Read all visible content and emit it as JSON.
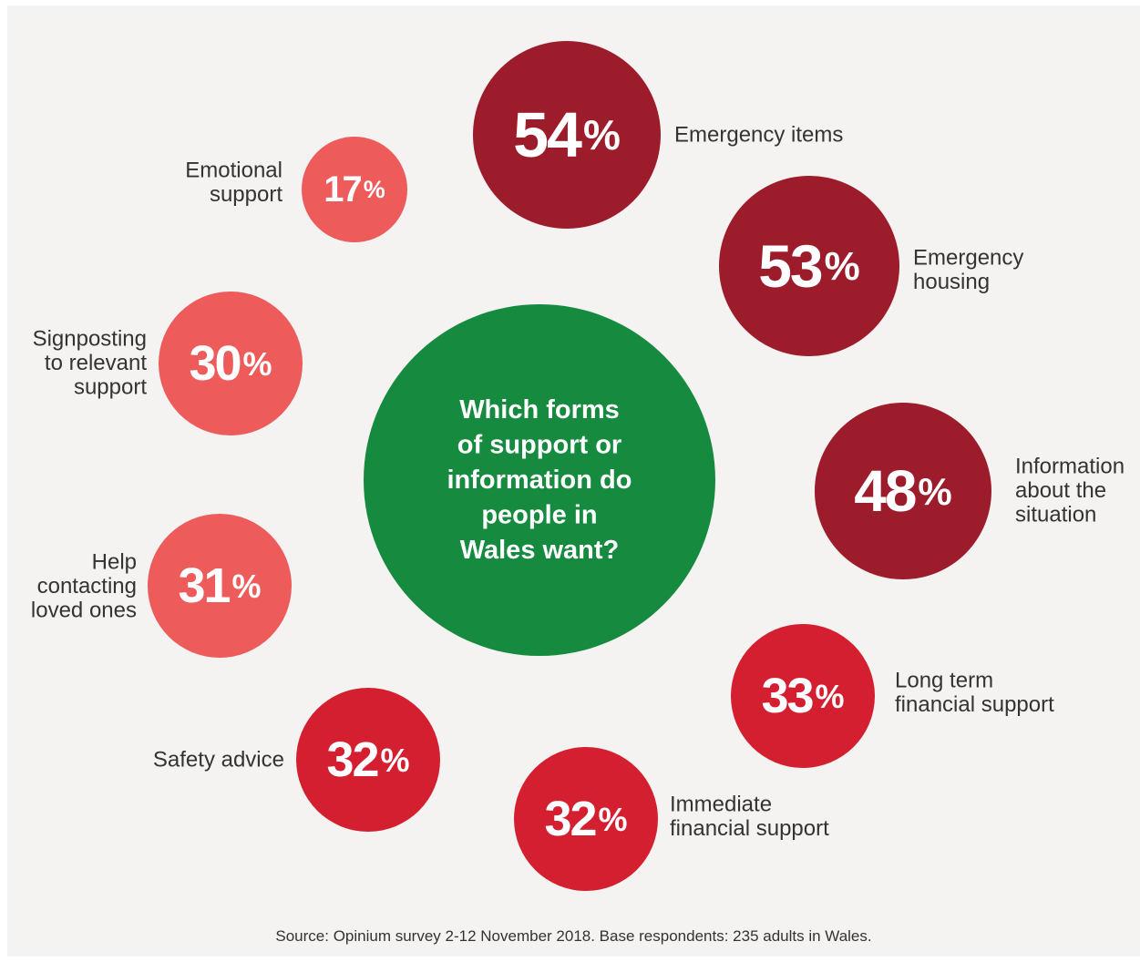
{
  "colors": {
    "background": "#f4f3f1",
    "center": "#168b40",
    "dark_red": "#9c1c2b",
    "red": "#d41f30",
    "light_red": "#ee5b5b",
    "label_text": "#333333"
  },
  "chart_data": {
    "type": "bubble",
    "center_question": [
      "Which forms",
      "of support or",
      "information do",
      "people in",
      "Wales want?"
    ],
    "items": [
      {
        "label": [
          "Emergency items"
        ],
        "value": 54,
        "color_group": "dark_red"
      },
      {
        "label": [
          "Emergency",
          "housing"
        ],
        "value": 53,
        "color_group": "dark_red"
      },
      {
        "label": [
          "Information",
          "about the",
          "situation"
        ],
        "value": 48,
        "color_group": "dark_red"
      },
      {
        "label": [
          "Long term",
          "financial support"
        ],
        "value": 33,
        "color_group": "red"
      },
      {
        "label": [
          "Immediate",
          "financial support"
        ],
        "value": 32,
        "color_group": "red"
      },
      {
        "label": [
          "Safety advice"
        ],
        "value": 32,
        "color_group": "red"
      },
      {
        "label": [
          "Help",
          "contacting",
          "loved ones"
        ],
        "value": 31,
        "color_group": "light_red"
      },
      {
        "label": [
          "Signposting",
          "to relevant",
          "support"
        ],
        "value": 30,
        "color_group": "light_red"
      },
      {
        "label": [
          "Emotional",
          "support"
        ],
        "value": 17,
        "color_group": "light_red"
      }
    ],
    "percent_symbol": "%"
  },
  "footer": {
    "source": "Source: Opinium survey 2-12 November 2018. Base respondents: 235 adults in Wales."
  }
}
